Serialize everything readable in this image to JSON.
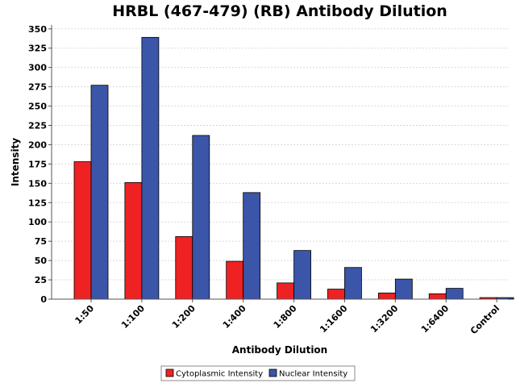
{
  "chart_data": {
    "type": "bar",
    "title": "HRBL (467-479) (RB) Antibody Dilution",
    "xlabel": "Antibody Dilution",
    "ylabel": "Intensity",
    "ylim": [
      0,
      355
    ],
    "yticks": [
      0,
      25,
      50,
      75,
      100,
      125,
      150,
      175,
      200,
      225,
      250,
      275,
      300,
      325,
      350
    ],
    "grid": true,
    "legend_position": "bottom-center",
    "categories": [
      "1:50",
      "1:100",
      "1:200",
      "1:400",
      "1:800",
      "1:1600",
      "1:3200",
      "1:6400",
      "Control"
    ],
    "series": [
      {
        "name": "Cytoplasmic Intensity",
        "color": "#ee2222",
        "values": [
          178,
          151,
          81,
          49,
          21,
          13,
          8,
          7,
          2
        ]
      },
      {
        "name": "Nuclear Intensity",
        "color": "#3b55a8",
        "values": [
          277,
          339,
          212,
          138,
          63,
          41,
          26,
          14,
          2
        ]
      }
    ]
  }
}
